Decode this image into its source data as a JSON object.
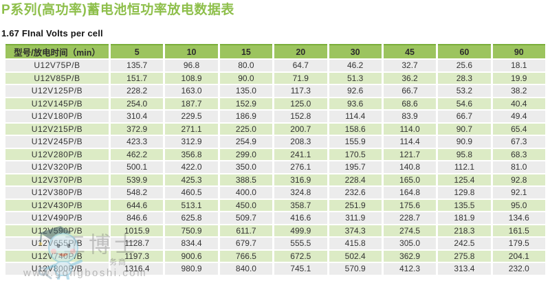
{
  "page": {
    "title": "P系列(高功率)蓄电池恒功率放电数据表",
    "subtitle": "1.67 FInal Volts per cell"
  },
  "table": {
    "header_label": "型号/放电时间（min）",
    "time_columns": [
      "5",
      "10",
      "15",
      "20",
      "30",
      "45",
      "60",
      "90"
    ],
    "rows": [
      {
        "model": "U12V75P/B",
        "values": [
          "135.7",
          "96.8",
          "80.0",
          "64.7",
          "46.2",
          "32.7",
          "25.6",
          "18.1"
        ]
      },
      {
        "model": "U12V85P/B",
        "values": [
          "151.7",
          "108.9",
          "90.0",
          "71.9",
          "51.3",
          "36.2",
          "28.3",
          "19.9"
        ]
      },
      {
        "model": "U12V125P/B",
        "values": [
          "228.2",
          "163.0",
          "135.0",
          "117.3",
          "92.6",
          "66.7",
          "53.2",
          "38.2"
        ]
      },
      {
        "model": "U12V145P/B",
        "values": [
          "254.0",
          "187.7",
          "152.9",
          "125.0",
          "93.6",
          "68.6",
          "54.6",
          "40.4"
        ]
      },
      {
        "model": "U12V180P/B",
        "values": [
          "310.4",
          "229.5",
          "186.9",
          "152.8",
          "114.4",
          "83.9",
          "66.7",
          "49.4"
        ]
      },
      {
        "model": "U12V215P/B",
        "values": [
          "372.9",
          "271.1",
          "225.0",
          "200.7",
          "158.6",
          "114.0",
          "90.7",
          "65.4"
        ]
      },
      {
        "model": "U12V245P/B",
        "values": [
          "423.3",
          "312.9",
          "254.9",
          "208.3",
          "155.9",
          "114.4",
          "90.9",
          "67.3"
        ]
      },
      {
        "model": "U12V280P/B",
        "values": [
          "462.2",
          "356.8",
          "299.0",
          "241.1",
          "170.5",
          "121.7",
          "95.8",
          "68.3"
        ]
      },
      {
        "model": "U12V320P/B",
        "values": [
          "500.1",
          "422.0",
          "350.0",
          "276.1",
          "195.7",
          "140.8",
          "112.1",
          "81.0"
        ]
      },
      {
        "model": "U12V370P/B",
        "values": [
          "539.9",
          "425.3",
          "388.5",
          "316.9",
          "228.4",
          "165.0",
          "125.4",
          "92.8"
        ]
      },
      {
        "model": "U12V380P/B",
        "values": [
          "548.2",
          "460.5",
          "400.0",
          "324.8",
          "232.6",
          "164.8",
          "129.8",
          "92.1"
        ]
      },
      {
        "model": "U12V430P/B",
        "values": [
          "644.6",
          "513.1",
          "450.0",
          "358.7",
          "251.9",
          "175.6",
          "135.5",
          "95.0"
        ]
      },
      {
        "model": "U12V490P/B",
        "values": [
          "846.6",
          "625.8",
          "509.7",
          "416.6",
          "311.9",
          "228.7",
          "181.9",
          "134.6"
        ]
      },
      {
        "model": "U12V590P/B",
        "values": [
          "1015.9",
          "750.9",
          "611.7",
          "499.9",
          "374.3",
          "274.5",
          "218.3",
          "161.5"
        ]
      },
      {
        "model": "U12V655P/B",
        "values": [
          "1128.7",
          "834.4",
          "679.7",
          "555.5",
          "415.8",
          "305.0",
          "242.5",
          "179.5"
        ]
      },
      {
        "model": "U12V740P/B",
        "values": [
          "1197.3",
          "900.6",
          "766.5",
          "672.5",
          "502.4",
          "362.9",
          "275.8",
          "204.1"
        ]
      },
      {
        "model": "U12V800P/B",
        "values": [
          "1316.4",
          "980.9",
          "840.0",
          "745.1",
          "570.9",
          "412.3",
          "313.4",
          "232.0"
        ]
      }
    ]
  },
  "watermark": {
    "big_text": "工博士",
    "small_text": "务商",
    "url": "www.gongboshi.com",
    "mascot_icon": "doctor-mascot-icon"
  },
  "colors": {
    "title_green": "#8ebf4b",
    "header_green": "#9cc45e",
    "header_border_green": "#7aae39",
    "row_gray": "#ececec",
    "row_green": "#dcebc5",
    "cell_text": "#333333"
  }
}
